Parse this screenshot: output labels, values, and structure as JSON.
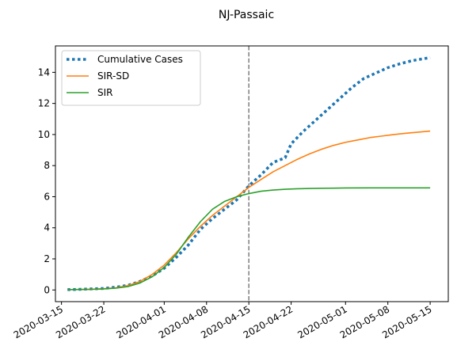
{
  "chart_data": {
    "type": "line",
    "title": "NJ-Passaic",
    "xlabel": "",
    "ylabel": "",
    "x_axis_type": "date",
    "xlim": [
      "2020-03-14",
      "2020-05-18"
    ],
    "ylim": [
      -0.75,
      15.7
    ],
    "x_ticks": [
      "2020-03-15",
      "2020-03-22",
      "2020-04-01",
      "2020-04-08",
      "2020-04-15",
      "2020-04-22",
      "2020-05-01",
      "2020-05-08",
      "2020-05-15"
    ],
    "y_ticks": [
      0,
      2,
      4,
      6,
      8,
      10,
      12,
      14
    ],
    "grid": false,
    "legend_position": "top-left",
    "vline": {
      "x": "2020-04-15",
      "color": "#7f7f7f",
      "style": "dashed"
    },
    "series": [
      {
        "name": "Cumulative Cases",
        "color": "#1f77b4",
        "style": "dotted",
        "x": [
          "2020-03-16",
          "2020-03-18",
          "2020-03-20",
          "2020-03-22",
          "2020-03-24",
          "2020-03-26",
          "2020-03-28",
          "2020-03-30",
          "2020-04-01",
          "2020-04-03",
          "2020-04-05",
          "2020-04-07",
          "2020-04-09",
          "2020-04-11",
          "2020-04-13",
          "2020-04-15",
          "2020-04-17",
          "2020-04-19",
          "2020-04-21",
          "2020-04-22",
          "2020-04-24",
          "2020-04-26",
          "2020-04-28",
          "2020-04-30",
          "2020-05-02",
          "2020-05-04",
          "2020-05-06",
          "2020-05-08",
          "2020-05-10",
          "2020-05-12",
          "2020-05-15"
        ],
        "y": [
          0.02,
          0.04,
          0.07,
          0.1,
          0.18,
          0.3,
          0.55,
          0.9,
          1.4,
          2.1,
          2.9,
          3.9,
          4.6,
          5.2,
          5.8,
          6.7,
          7.4,
          8.2,
          8.5,
          9.4,
          10.2,
          10.9,
          11.6,
          12.3,
          13.0,
          13.6,
          13.95,
          14.3,
          14.55,
          14.75,
          14.95
        ]
      },
      {
        "name": "SIR-SD",
        "color": "#ff7f0e",
        "style": "solid",
        "x": [
          "2020-03-16",
          "2020-03-18",
          "2020-03-20",
          "2020-03-22",
          "2020-03-24",
          "2020-03-26",
          "2020-03-28",
          "2020-03-30",
          "2020-04-01",
          "2020-04-03",
          "2020-04-05",
          "2020-04-07",
          "2020-04-09",
          "2020-04-11",
          "2020-04-13",
          "2020-04-15",
          "2020-04-17",
          "2020-04-19",
          "2020-04-21",
          "2020-04-23",
          "2020-04-25",
          "2020-04-27",
          "2020-04-29",
          "2020-05-01",
          "2020-05-03",
          "2020-05-05",
          "2020-05-07",
          "2020-05-09",
          "2020-05-11",
          "2020-05-13",
          "2020-05-15"
        ],
        "y": [
          0.02,
          0.03,
          0.05,
          0.08,
          0.14,
          0.28,
          0.55,
          1.0,
          1.6,
          2.4,
          3.3,
          4.1,
          4.8,
          5.4,
          6.0,
          6.6,
          7.1,
          7.6,
          8.0,
          8.4,
          8.75,
          9.05,
          9.3,
          9.5,
          9.65,
          9.8,
          9.9,
          10.0,
          10.08,
          10.15,
          10.22
        ]
      },
      {
        "name": "SIR",
        "color": "#2ca02c",
        "style": "solid",
        "x": [
          "2020-03-16",
          "2020-03-18",
          "2020-03-20",
          "2020-03-22",
          "2020-03-24",
          "2020-03-26",
          "2020-03-28",
          "2020-03-30",
          "2020-04-01",
          "2020-04-03",
          "2020-04-05",
          "2020-04-07",
          "2020-04-09",
          "2020-04-11",
          "2020-04-13",
          "2020-04-15",
          "2020-04-17",
          "2020-04-19",
          "2020-04-21",
          "2020-04-23",
          "2020-04-25",
          "2020-04-27",
          "2020-04-29",
          "2020-05-01",
          "2020-05-05",
          "2020-05-10",
          "2020-05-15"
        ],
        "y": [
          0.02,
          0.03,
          0.04,
          0.07,
          0.12,
          0.22,
          0.45,
          0.85,
          1.45,
          2.3,
          3.4,
          4.4,
          5.2,
          5.7,
          6.0,
          6.2,
          6.35,
          6.43,
          6.48,
          6.51,
          6.53,
          6.54,
          6.55,
          6.56,
          6.57,
          6.57,
          6.57
        ]
      }
    ]
  }
}
